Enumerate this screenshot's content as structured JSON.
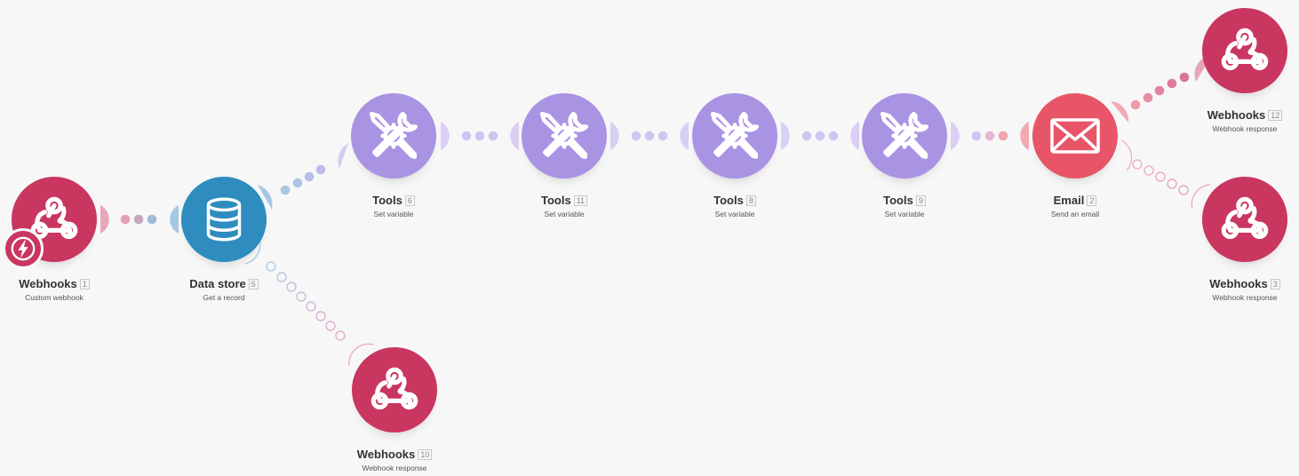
{
  "colors": {
    "webhooks": "#c93660",
    "datastore": "#2e8cbf",
    "tools": "#a993e3",
    "email": "#e85568",
    "background": "#f7f7f7"
  },
  "nodes": {
    "webhooks1": {
      "title": "Webhooks",
      "id": "1",
      "subtitle": "Custom webhook",
      "icon": "webhook-icon"
    },
    "datastore5": {
      "title": "Data store",
      "id": "5",
      "subtitle": "Get a record",
      "icon": "database-icon"
    },
    "tools6": {
      "title": "Tools",
      "id": "6",
      "subtitle": "Set variable",
      "icon": "tools-icon"
    },
    "tools11": {
      "title": "Tools",
      "id": "11",
      "subtitle": "Set variable",
      "icon": "tools-icon"
    },
    "tools8": {
      "title": "Tools",
      "id": "8",
      "subtitle": "Set variable",
      "icon": "tools-icon"
    },
    "tools9": {
      "title": "Tools",
      "id": "9",
      "subtitle": "Set variable",
      "icon": "tools-icon"
    },
    "email2": {
      "title": "Email",
      "id": "2",
      "subtitle": "Send an email",
      "icon": "envelope-icon"
    },
    "webhooks12": {
      "title": "Webhooks",
      "id": "12",
      "subtitle": "Webhook response",
      "icon": "webhook-icon"
    },
    "webhooks3": {
      "title": "Webhooks",
      "id": "3",
      "subtitle": "Webhook response",
      "icon": "webhook-icon"
    },
    "webhooks10": {
      "title": "Webhooks",
      "id": "10",
      "subtitle": "Webhook response",
      "icon": "webhook-icon"
    }
  },
  "trigger": {
    "icon": "lightning-bolt-icon"
  }
}
